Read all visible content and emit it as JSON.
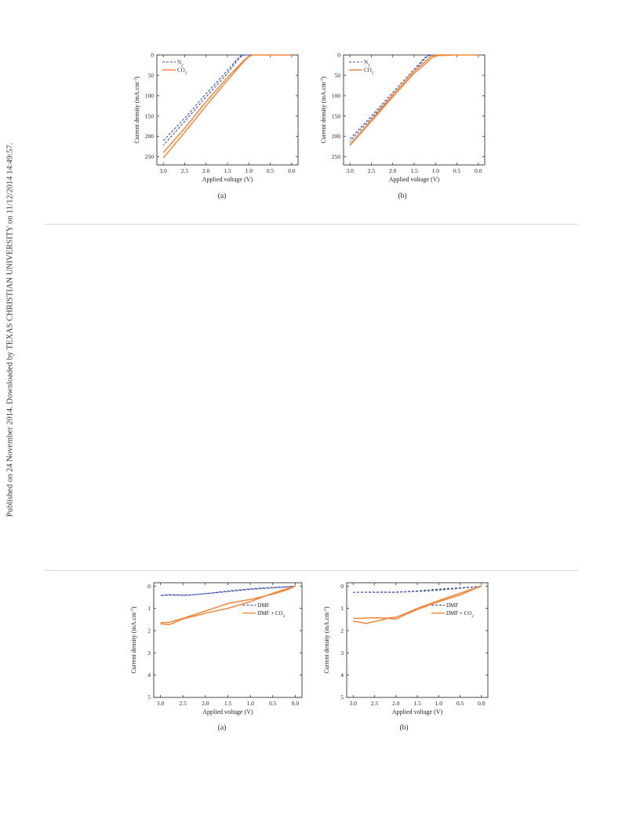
{
  "side_note": "Published on 24 November 2014. Downloaded by TEXAS CHRISTIAN UNIVERSITY on 11/12/2014 14:49:57.",
  "colors": {
    "series_dashed": "#3a4fb0",
    "series_solid": "#f0883c",
    "axis": "#333333",
    "divider": "#d9d9c8"
  },
  "chart_data": [
    {
      "type": "line",
      "sub_label": "(a)",
      "xlabel": "Applied voltage (V)",
      "ylabel": "Current density (mA.cm",
      "ylabel_sup": "-2",
      "ylabel_tail": ")",
      "xlim": [
        3.15,
        -0.15
      ],
      "ylim": [
        0,
        270
      ],
      "y_inverted": true,
      "xticks": [
        3.0,
        2.5,
        2.0,
        1.5,
        1.0,
        0.5,
        0.0
      ],
      "xtick_labels": [
        "3.0",
        "2.5",
        "2.0",
        "1.5",
        "1.0",
        "0.5",
        "0.0"
      ],
      "yticks": [
        0,
        50,
        100,
        150,
        200,
        250
      ],
      "ytick_labels": [
        "0",
        "50",
        "100",
        "150",
        "200",
        "250"
      ],
      "legend_position": "top-left",
      "series": [
        {
          "name": "N",
          "name_sub": "2",
          "style": "dashed",
          "x": [
            3.0,
            2.5,
            2.0,
            1.5,
            1.3,
            1.2,
            1.1,
            1.0,
            0.5,
            0.0,
            0.5,
            1.0,
            1.1,
            1.2,
            1.3,
            1.5,
            2.0,
            2.5,
            3.0
          ],
          "y": [
            210,
            155,
            95,
            38,
            14,
            3,
            0,
            0,
            0,
            0,
            0,
            0,
            0,
            5,
            18,
            45,
            103,
            163,
            222
          ]
        },
        {
          "name": "CO",
          "name_sub": "2",
          "style": "solid",
          "x": [
            3.0,
            2.5,
            2.0,
            1.5,
            1.1,
            1.0,
            0.9,
            0.5,
            0.0,
            0.5,
            0.9,
            1.0,
            1.1,
            1.5,
            2.0,
            2.5,
            3.0
          ],
          "y": [
            240,
            180,
            115,
            55,
            12,
            3,
            0,
            0,
            0,
            0,
            0,
            4,
            14,
            62,
            125,
            190,
            253
          ]
        }
      ]
    },
    {
      "type": "line",
      "sub_label": "(b)",
      "xlabel": "Applied voltage (V)",
      "ylabel": "Current density (mA.cm",
      "ylabel_sup": "-2",
      "ylabel_tail": ")",
      "xlim": [
        3.15,
        -0.15
      ],
      "ylim": [
        0,
        270
      ],
      "y_inverted": true,
      "xticks": [
        3.0,
        2.5,
        2.0,
        1.5,
        1.0,
        0.5,
        0.0
      ],
      "xtick_labels": [
        "3.0",
        "2.5",
        "2.0",
        "1.5",
        "1.0",
        "0.5",
        "0.0"
      ],
      "yticks": [
        0,
        50,
        100,
        150,
        200,
        250
      ],
      "ytick_labels": [
        "0",
        "50",
        "100",
        "150",
        "200",
        "250"
      ],
      "legend_position": "top-left",
      "series": [
        {
          "name": "N",
          "name_sub": "2",
          "style": "dashed",
          "x": [
            3.0,
            2.5,
            2.0,
            1.5,
            1.3,
            1.2,
            1.1,
            1.0,
            0.5,
            0.0,
            0.5,
            1.0,
            1.1,
            1.2,
            1.3,
            1.5,
            2.0,
            2.5,
            3.0
          ],
          "y": [
            206,
            150,
            92,
            35,
            12,
            2,
            0,
            0,
            0,
            0,
            0,
            0,
            0,
            4,
            15,
            40,
            97,
            155,
            212
          ]
        },
        {
          "name": "CO",
          "name_sub": "2",
          "style": "solid",
          "x": [
            3.0,
            2.5,
            2.0,
            1.5,
            1.2,
            1.1,
            1.0,
            0.5,
            0.0,
            0.5,
            1.0,
            1.1,
            1.2,
            1.5,
            2.0,
            2.5,
            3.0
          ],
          "y": [
            220,
            160,
            98,
            40,
            12,
            3,
            0,
            0,
            0,
            0,
            2,
            8,
            18,
            45,
            103,
            163,
            222
          ]
        }
      ]
    },
    {
      "type": "line",
      "sub_label": "(a)",
      "xlabel": "Applied voltage (V)",
      "ylabel": "Current density (mA.cm",
      "ylabel_sup": "-2",
      "ylabel_tail": ")",
      "xlim": [
        3.15,
        -0.15
      ],
      "ylim": [
        -0.15,
        5
      ],
      "y_inverted": true,
      "xticks": [
        3.0,
        2.5,
        2.0,
        1.5,
        1.0,
        0.5,
        0.0
      ],
      "xtick_labels": [
        "3.0",
        "2.5",
        "2.0",
        "1.5",
        "1.0",
        "0.5",
        "0.0"
      ],
      "yticks": [
        0,
        1,
        2,
        3,
        4,
        5
      ],
      "ytick_labels": [
        "0",
        "1",
        "2",
        "3",
        "4",
        "5"
      ],
      "legend_position": "right",
      "series": [
        {
          "name": "DMF",
          "name_sub": "",
          "style": "dashed",
          "x": [
            3.0,
            2.8,
            2.6,
            2.4,
            2.2,
            2.0,
            1.5,
            1.0,
            0.5,
            0.2,
            0.0,
            0.2,
            0.5,
            1.0,
            1.5,
            2.0,
            2.5,
            2.8,
            3.0
          ],
          "y": [
            0.42,
            0.38,
            0.4,
            0.42,
            0.38,
            0.34,
            0.22,
            0.12,
            0.06,
            0.03,
            0.0,
            0.04,
            0.08,
            0.15,
            0.25,
            0.34,
            0.41,
            0.41,
            0.42
          ]
        },
        {
          "name": "DMF + CO",
          "name_sub": "2",
          "style": "solid",
          "x": [
            3.0,
            2.8,
            2.5,
            2.0,
            1.5,
            1.0,
            0.5,
            0.2,
            0.0,
            0.2,
            0.5,
            1.0,
            1.5,
            2.0,
            2.5,
            2.8,
            3.0
          ],
          "y": [
            1.65,
            1.62,
            1.45,
            1.12,
            0.78,
            0.6,
            0.36,
            0.18,
            0.0,
            0.12,
            0.32,
            0.7,
            1.0,
            1.22,
            1.48,
            1.73,
            1.7
          ]
        }
      ]
    },
    {
      "type": "line",
      "sub_label": "(b)",
      "xlabel": "Applied voltage (V)",
      "ylabel": "Current density (mA.cm",
      "ylabel_sup": "-2",
      "ylabel_tail": ")",
      "xlim": [
        3.15,
        -0.15
      ],
      "ylim": [
        -0.15,
        5
      ],
      "y_inverted": true,
      "xticks": [
        3.0,
        2.5,
        2.0,
        1.5,
        1.0,
        0.5,
        0.0
      ],
      "xtick_labels": [
        "3.0",
        "2.5",
        "2.0",
        "1.5",
        "1.0",
        "0.5",
        "0.0"
      ],
      "yticks": [
        0,
        1,
        2,
        3,
        4,
        5
      ],
      "ytick_labels": [
        "0",
        "1",
        "2",
        "3",
        "4",
        "5"
      ],
      "legend_position": "right",
      "series": [
        {
          "name": "DMF",
          "name_sub": "",
          "style": "dashed",
          "x": [
            3.0,
            2.5,
            2.0,
            1.5,
            1.0,
            0.5,
            0.2,
            0.0,
            0.2,
            0.5,
            1.0,
            1.5,
            2.0,
            2.5,
            3.0
          ],
          "y": [
            0.28,
            0.27,
            0.27,
            0.22,
            0.14,
            0.08,
            0.04,
            0.0,
            0.05,
            0.1,
            0.18,
            0.24,
            0.28,
            0.28,
            0.28
          ]
        },
        {
          "name": "DMF + CO",
          "name_sub": "2",
          "style": "solid",
          "x": [
            3.0,
            2.8,
            2.6,
            2.4,
            2.2,
            2.0,
            1.8,
            1.5,
            1.0,
            0.5,
            0.2,
            0.0,
            0.2,
            0.5,
            1.0,
            1.5,
            1.8,
            2.0,
            2.2,
            2.4,
            2.7,
            2.9,
            3.0
          ],
          "y": [
            1.45,
            1.45,
            1.43,
            1.42,
            1.44,
            1.4,
            1.25,
            1.0,
            0.65,
            0.32,
            0.12,
            0.0,
            0.15,
            0.4,
            0.7,
            1.05,
            1.3,
            1.48,
            1.45,
            1.55,
            1.68,
            1.6,
            1.58
          ]
        }
      ]
    }
  ]
}
